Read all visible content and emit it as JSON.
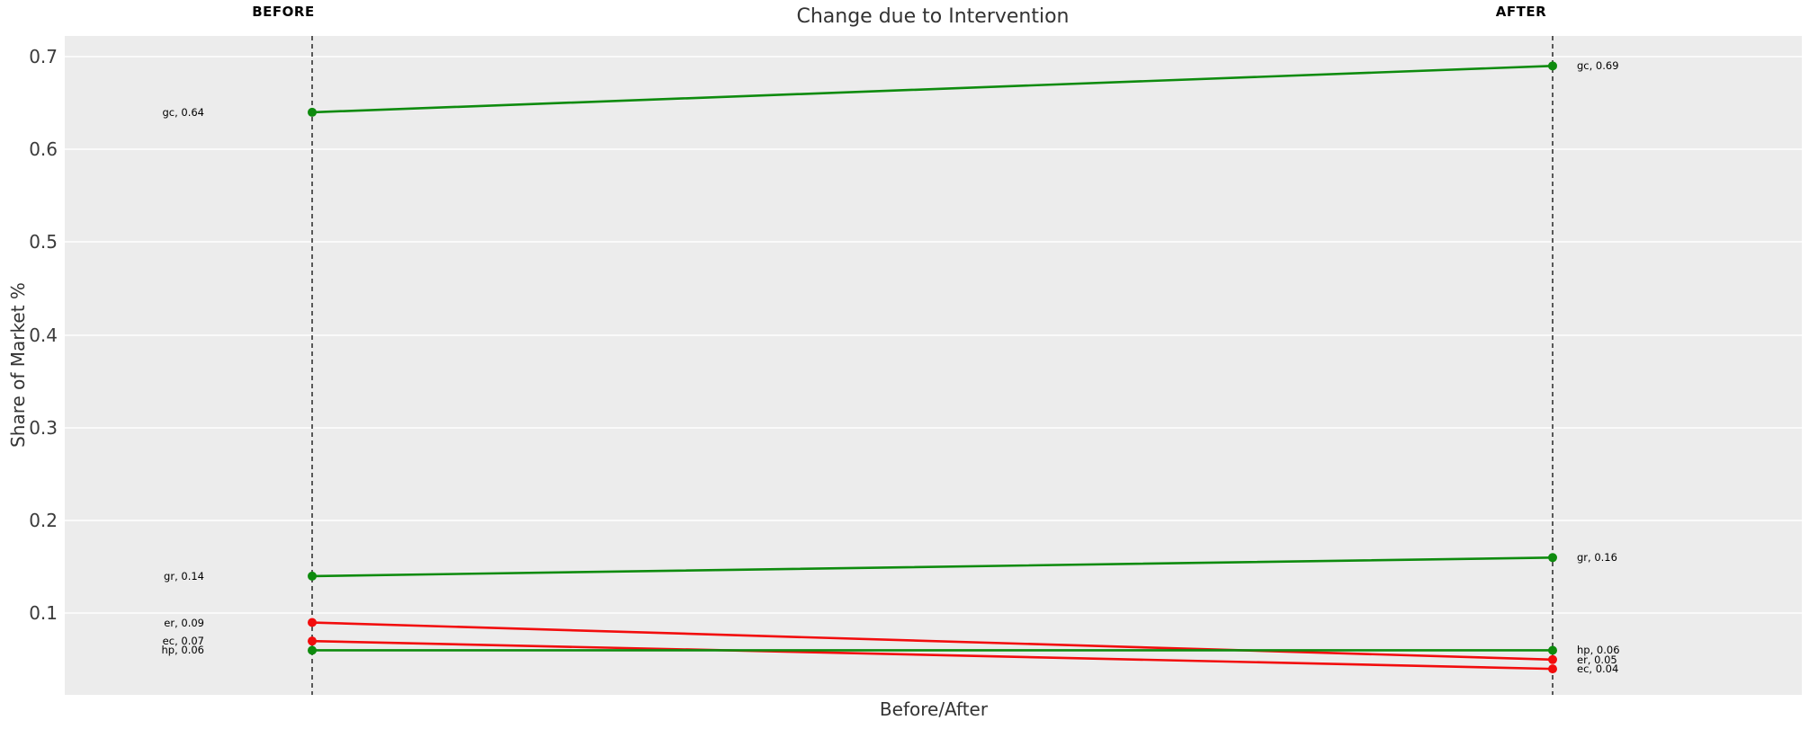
{
  "title": "Change due to Intervention",
  "columns": {
    "before": "BEFORE",
    "after": "AFTER"
  },
  "axes": {
    "y_label": "Share of Market %",
    "x_label": "Before/After"
  },
  "colors": {
    "green": "#0e8b0e",
    "red": "#f20d0d",
    "plot_background": "#ececec",
    "gridline": "#fafafa",
    "dashed_guide": "#1a1a1a",
    "text": "#333333"
  },
  "chart_data": {
    "type": "line",
    "subtype": "slope-chart",
    "title": "Change due to Intervention",
    "xlabel": "Before/After",
    "ylabel": "Share of Market %",
    "categories": [
      "BEFORE",
      "AFTER"
    ],
    "y_ticks": [
      0.7,
      0.6,
      0.5,
      0.4,
      0.3,
      0.2,
      0.1
    ],
    "ylim": [
      0.01,
      0.72
    ],
    "grid": true,
    "legend": false,
    "guide_lines": "dashed vertical at each category",
    "series": [
      {
        "name": "gc",
        "color": "green",
        "values": [
          0.64,
          0.69
        ],
        "labels": [
          "gc, 0.64",
          "gc, 0.69"
        ]
      },
      {
        "name": "gr",
        "color": "green",
        "values": [
          0.14,
          0.16
        ],
        "labels": [
          "gr, 0.14",
          "gr, 0.16"
        ]
      },
      {
        "name": "er",
        "color": "red",
        "values": [
          0.09,
          0.05
        ],
        "labels": [
          "er, 0.09",
          "er, 0.05"
        ]
      },
      {
        "name": "ec",
        "color": "red",
        "values": [
          0.07,
          0.04
        ],
        "labels": [
          "ec, 0.07",
          "ec, 0.04"
        ]
      },
      {
        "name": "hp",
        "color": "green",
        "values": [
          0.06,
          0.06
        ],
        "labels": [
          "hp, 0.06",
          "hp, 0.06"
        ]
      }
    ]
  }
}
